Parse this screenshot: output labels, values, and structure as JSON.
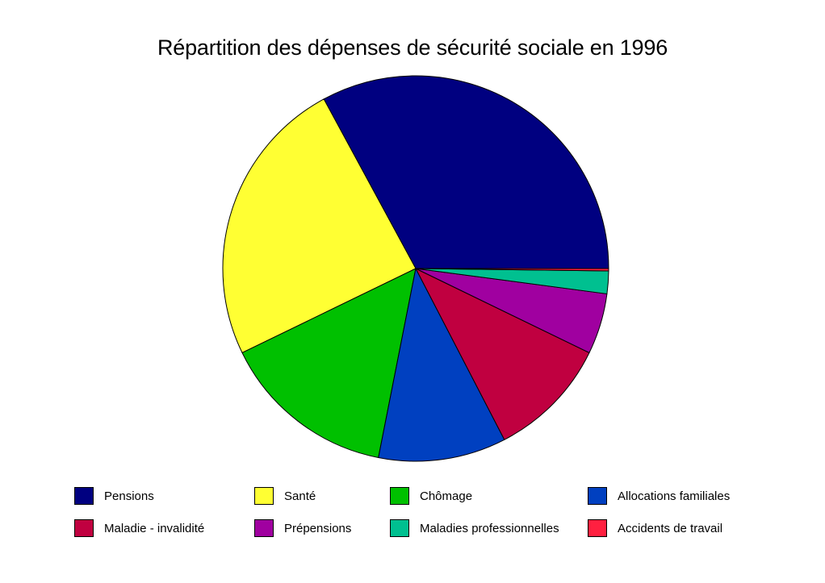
{
  "chart_data": {
    "type": "pie",
    "title": "Répartition des dépenses de sécurité sociale en 1996",
    "unit": "%",
    "start_angle_deg": 0,
    "direction": "counterclockwise",
    "legend_position": "bottom",
    "slices": [
      {
        "label": "Pensions",
        "value": 32.9,
        "color": "#000080"
      },
      {
        "label": "Santé",
        "value": 24.3,
        "color": "#FFFF33"
      },
      {
        "label": "Chômage",
        "value": 14.7,
        "color": "#00C000"
      },
      {
        "label": "Allocations familiales",
        "value": 10.7,
        "color": "#0040C0"
      },
      {
        "label": "Maladie - invalidité",
        "value": 10.2,
        "color": "#C00040"
      },
      {
        "label": "Prépensions",
        "value": 5.1,
        "color": "#A000A0"
      },
      {
        "label": "Maladies professionnelles",
        "value": 1.9,
        "color": "#00C090"
      },
      {
        "label": "Accidents de travail",
        "value": 0.2,
        "color": "#FF2040"
      }
    ]
  }
}
